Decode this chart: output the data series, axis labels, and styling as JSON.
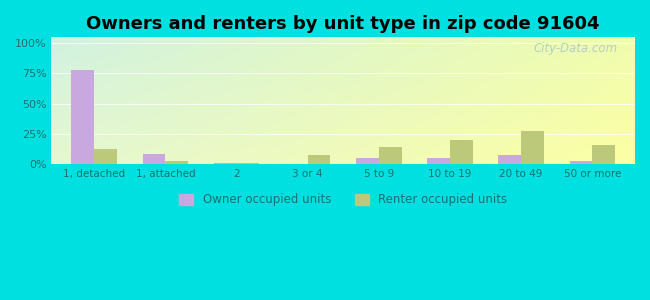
{
  "title": "Owners and renters by unit type in zip code 91604",
  "categories": [
    "1, detached",
    "1, attached",
    "2",
    "3 or 4",
    "5 to 9",
    "10 to 19",
    "20 to 49",
    "50 or more"
  ],
  "owner_values": [
    78,
    8,
    0.5,
    0.3,
    5,
    5,
    7,
    2
  ],
  "renter_values": [
    12,
    2,
    0.5,
    7,
    14,
    20,
    27,
    16
  ],
  "owner_color": "#c9a8e0",
  "renter_color": "#bcc87a",
  "outer_bg": "#00e0e0",
  "yticks": [
    0,
    25,
    50,
    75,
    100
  ],
  "ytick_labels": [
    "0%",
    "25%",
    "50%",
    "75%",
    "100%"
  ],
  "ylim": [
    0,
    105
  ],
  "legend_owner": "Owner occupied units",
  "legend_renter": "Renter occupied units",
  "bar_width": 0.32,
  "title_fontsize": 13,
  "tick_color": "#207070",
  "watermark": "City-Data.com"
}
